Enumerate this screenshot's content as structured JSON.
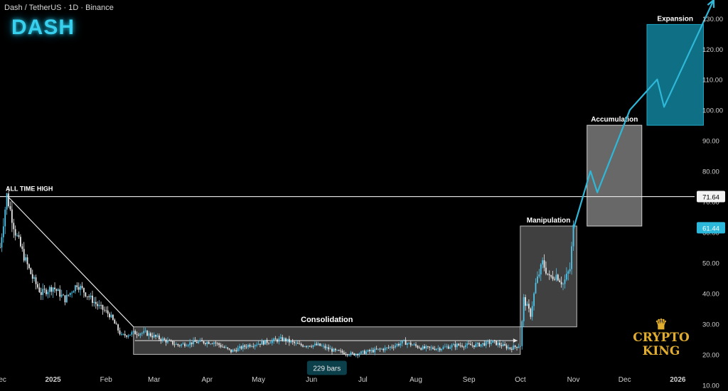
{
  "header": {
    "symbol_line": "Dash / TetherUS · 1D · Binance",
    "ticker": "DASH"
  },
  "watermark": {
    "line1": "CRYPTO",
    "line2": "KING",
    "icon": "crown-icon"
  },
  "colors": {
    "background": "#000000",
    "candle_up": "#4fc3e8",
    "candle_down": "#e8e8e8",
    "expansion_box": "#0e6f85",
    "accumulation_box": "#7a7a7a",
    "manipulation_box": "#555555",
    "consolidation_box": "#6b6b6b",
    "arrow": "#2fb7d8",
    "price_badge": "#2cb8da"
  },
  "chart_data": {
    "type": "candlestick",
    "title": "",
    "xlabel": "",
    "ylabel": "",
    "x_ticks": [
      "Dec",
      "2025",
      "Feb",
      "Mar",
      "Apr",
      "May",
      "Jun",
      "Jul",
      "Aug",
      "Sep",
      "Oct",
      "Nov",
      "Dec",
      "2026"
    ],
    "y_ticks": [
      10,
      20,
      30,
      40,
      50,
      60,
      70,
      80,
      90,
      100,
      110,
      120,
      130
    ],
    "y_tick_labels": [
      "10.00",
      "20.00",
      "30.00",
      "40.00",
      "50.00",
      "60.00",
      "70.00",
      "80.00",
      "90.00",
      "100.00",
      "110.00",
      "120.00",
      "130.00"
    ],
    "ylim": [
      8,
      136
    ],
    "xlim": [
      "2024-12-01",
      "2026-01-10"
    ],
    "price_path": [
      [
        "2024-12-01",
        55
      ],
      [
        "2024-12-05",
        72
      ],
      [
        "2024-12-10",
        60
      ],
      [
        "2024-12-15",
        52
      ],
      [
        "2024-12-20",
        45
      ],
      [
        "2024-12-25",
        40
      ],
      [
        "2025-01-01",
        42
      ],
      [
        "2025-01-08",
        38
      ],
      [
        "2025-01-15",
        43
      ],
      [
        "2025-01-20",
        40
      ],
      [
        "2025-01-27",
        36
      ],
      [
        "2025-02-03",
        33
      ],
      [
        "2025-02-10",
        26
      ],
      [
        "2025-02-17",
        27
      ],
      [
        "2025-02-24",
        27
      ],
      [
        "2025-03-05",
        25
      ],
      [
        "2025-03-15",
        23
      ],
      [
        "2025-03-25",
        24
      ],
      [
        "2025-04-05",
        24
      ],
      [
        "2025-04-15",
        21
      ],
      [
        "2025-04-25",
        23
      ],
      [
        "2025-05-05",
        24
      ],
      [
        "2025-05-15",
        25
      ],
      [
        "2025-05-25",
        23
      ],
      [
        "2025-06-05",
        23
      ],
      [
        "2025-06-15",
        21
      ],
      [
        "2025-06-25",
        20
      ],
      [
        "2025-07-05",
        21
      ],
      [
        "2025-07-15",
        22
      ],
      [
        "2025-07-25",
        24
      ],
      [
        "2025-08-05",
        22
      ],
      [
        "2025-08-15",
        22
      ],
      [
        "2025-08-25",
        23
      ],
      [
        "2025-09-05",
        23
      ],
      [
        "2025-09-15",
        24
      ],
      [
        "2025-09-25",
        22
      ],
      [
        "2025-10-01",
        23
      ],
      [
        "2025-10-03",
        38
      ],
      [
        "2025-10-07",
        33
      ],
      [
        "2025-10-10",
        43
      ],
      [
        "2025-10-14",
        50
      ],
      [
        "2025-10-18",
        45
      ],
      [
        "2025-10-22",
        46
      ],
      [
        "2025-10-26",
        43
      ],
      [
        "2025-10-30",
        48
      ],
      [
        "2025-11-01",
        61.44
      ]
    ],
    "current_price": 61.44,
    "current_price_label": "61.44",
    "levels": [
      {
        "label": "ALL TIME HIGH",
        "value": 71.64,
        "value_label": "71.64"
      }
    ],
    "trendline": {
      "from": [
        "2024-12-05",
        72
      ],
      "to": [
        "2025-02-17",
        29
      ]
    },
    "zones": [
      {
        "label": "Consolidation",
        "x0": "2025-02-17",
        "x1": "2025-10-01",
        "y0": 20,
        "y1": 29,
        "bars_label": "229 bars"
      },
      {
        "label": "Manipulation",
        "x0": "2025-10-01",
        "x1": "2025-11-03",
        "y0": 29,
        "y1": 62
      },
      {
        "label": "Accumulation",
        "x0": "2025-11-09",
        "x1": "2025-12-11",
        "y0": 62,
        "y1": 95
      },
      {
        "label": "Expansion",
        "x0": "2025-12-14",
        "x1": "2026-01-16",
        "y0": 95,
        "y1": 128
      }
    ],
    "projection": [
      [
        "2025-11-01",
        61
      ],
      [
        "2025-11-11",
        80
      ],
      [
        "2025-11-15",
        73
      ],
      [
        "2025-12-04",
        100
      ],
      [
        "2025-12-20",
        110
      ],
      [
        "2025-12-24",
        101
      ],
      [
        "2026-01-22",
        136
      ]
    ]
  }
}
